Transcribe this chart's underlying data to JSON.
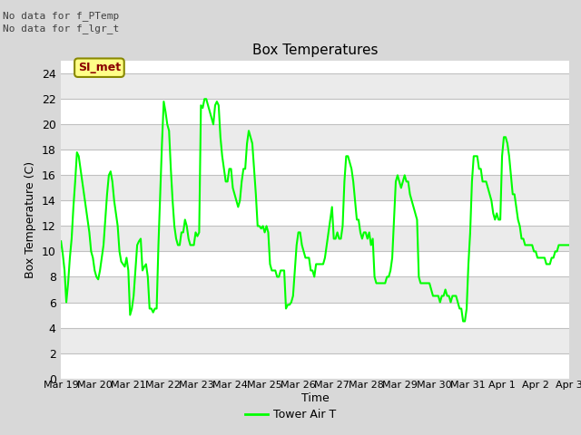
{
  "title": "Box Temperatures",
  "xlabel": "Time",
  "ylabel": "Box Temperature (C)",
  "no_data_texts": [
    "No data for f_PTemp",
    "No data for f_lgr_t"
  ],
  "si_met_label": "SI_met",
  "legend_label": "Tower Air T",
  "line_color": "#00FF00",
  "fig_facecolor": "#D8D8D8",
  "plot_facecolor": "#FFFFFF",
  "band_light": "#EBEBEB",
  "band_dark": "#D8D8D8",
  "ylim": [
    0,
    25
  ],
  "yticks": [
    0,
    2,
    4,
    6,
    8,
    10,
    12,
    14,
    16,
    18,
    20,
    22,
    24
  ],
  "x_tick_labels": [
    "Mar 19",
    "Mar 20",
    "Mar 21",
    "Mar 22",
    "Mar 23",
    "Mar 24",
    "Mar 25",
    "Mar 26",
    "Mar 27",
    "Mar 28",
    "Mar 29",
    "Mar 30",
    "Mar 31",
    "Apr 1",
    "Apr 2",
    "Apr 3"
  ],
  "tower_air_t": [
    10.8,
    9.8,
    8.5,
    6.0,
    7.5,
    9.5,
    11.0,
    13.5,
    15.5,
    17.8,
    17.5,
    16.5,
    15.5,
    14.5,
    13.5,
    12.5,
    11.5,
    10.0,
    9.5,
    8.5,
    8.0,
    7.8,
    8.5,
    9.5,
    10.5,
    12.5,
    14.5,
    16.0,
    16.3,
    15.5,
    14.0,
    13.0,
    12.0,
    10.0,
    9.2,
    9.0,
    8.8,
    9.5,
    8.5,
    5.0,
    5.5,
    6.5,
    8.5,
    10.5,
    10.8,
    11.0,
    8.5,
    8.8,
    9.0,
    8.0,
    5.5,
    5.5,
    5.2,
    5.5,
    5.5,
    10.5,
    14.5,
    18.5,
    21.8,
    21.0,
    20.0,
    19.5,
    16.5,
    14.0,
    12.0,
    11.0,
    10.5,
    10.5,
    11.5,
    11.5,
    12.5,
    12.0,
    11.0,
    10.5,
    10.5,
    10.5,
    11.5,
    11.2,
    11.5,
    21.5,
    21.3,
    22.0,
    22.0,
    21.5,
    21.0,
    20.5,
    20.0,
    21.5,
    21.8,
    21.5,
    19.0,
    17.5,
    16.5,
    15.5,
    15.5,
    16.5,
    16.5,
    15.0,
    14.5,
    14.0,
    13.5,
    14.0,
    15.5,
    16.5,
    16.5,
    18.5,
    19.5,
    19.0,
    18.5,
    16.5,
    14.5,
    12.0,
    12.0,
    11.8,
    12.0,
    11.5,
    12.0,
    11.5,
    9.0,
    8.5,
    8.5,
    8.5,
    8.0,
    8.0,
    8.5,
    8.5,
    8.5,
    5.5,
    5.8,
    5.8,
    6.0,
    6.5,
    8.5,
    10.5,
    11.5,
    11.5,
    10.5,
    10.0,
    9.5,
    9.5,
    9.5,
    8.5,
    8.5,
    8.0,
    9.0,
    9.0,
    9.0,
    9.0,
    9.0,
    9.5,
    10.5,
    11.5,
    12.5,
    13.5,
    11.0,
    11.0,
    11.5,
    11.0,
    11.0,
    12.0,
    15.5,
    17.5,
    17.5,
    17.0,
    16.5,
    15.5,
    14.0,
    12.5,
    12.5,
    11.5,
    11.0,
    11.5,
    11.5,
    11.0,
    11.5,
    10.5,
    11.0,
    8.0,
    7.5,
    7.5,
    7.5,
    7.5,
    7.5,
    7.5,
    8.0,
    8.0,
    8.5,
    9.5,
    12.5,
    15.5,
    16.0,
    15.5,
    15.0,
    15.5,
    16.0,
    15.5,
    15.5,
    14.5,
    14.0,
    13.5,
    13.0,
    12.5,
    8.0,
    7.5,
    7.5,
    7.5,
    7.5,
    7.5,
    7.5,
    7.0,
    6.5,
    6.5,
    6.5,
    6.5,
    6.0,
    6.5,
    6.5,
    7.0,
    6.5,
    6.5,
    6.0,
    6.5,
    6.5,
    6.5,
    6.0,
    5.5,
    5.5,
    4.5,
    4.5,
    5.5,
    9.0,
    11.5,
    15.5,
    17.5,
    17.5,
    17.5,
    16.5,
    16.5,
    15.5,
    15.5,
    15.5,
    15.0,
    14.5,
    14.0,
    13.0,
    12.5,
    13.0,
    12.5,
    12.5,
    17.5,
    19.0,
    19.0,
    18.5,
    17.5,
    16.0,
    14.5,
    14.5,
    13.5,
    12.5,
    12.0,
    11.0,
    11.0,
    10.5,
    10.5,
    10.5,
    10.5,
    10.5,
    10.0,
    10.0,
    9.5,
    9.5,
    9.5,
    9.5,
    9.5,
    9.0,
    9.0,
    9.0,
    9.5,
    9.5,
    10.0,
    10.0,
    10.5,
    10.5,
    10.5,
    10.5,
    10.5,
    10.5,
    10.5
  ]
}
